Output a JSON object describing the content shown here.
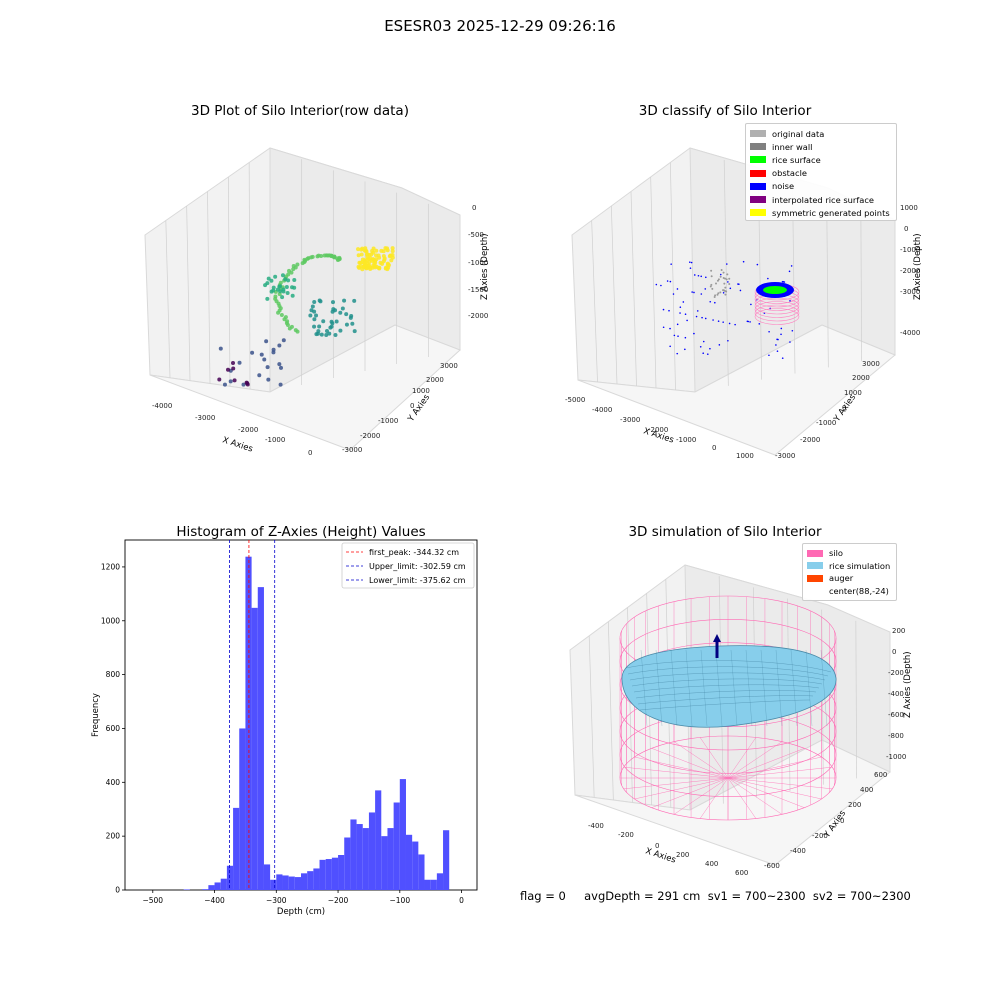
{
  "suptitle": "ESESR03 2025-12-29 09:26:16",
  "panels": {
    "raw": {
      "title": "3D Plot of Silo Interior(row data)",
      "xlabel": "X Axies",
      "ylabel": "Y Axies",
      "zlabel": "Z Axies (Depth)",
      "xticks": [
        "-4000",
        "-3000",
        "-2000",
        "-1000",
        "0"
      ],
      "yticks": [
        "-3000",
        "-2000",
        "-1000",
        "0",
        "1000",
        "2000",
        "3000"
      ],
      "zticks": [
        "-2000",
        "-1500",
        "-1000",
        "-500",
        "0"
      ]
    },
    "classify": {
      "title": "3D classify of Silo Interior",
      "xlabel": "X Axies",
      "ylabel": "Y Axies",
      "zlabel": "Z Axies (Depth)",
      "xticks": [
        "-5000",
        "-4000",
        "-3000",
        "-2000",
        "-1000",
        "0",
        "1000"
      ],
      "yticks": [
        "-3000",
        "-2000",
        "-1000",
        "0",
        "1000",
        "2000",
        "3000"
      ],
      "zticks": [
        "-4000",
        "-3000",
        "-2000",
        "-1000",
        "0",
        "1000",
        "2000"
      ],
      "legend": [
        {
          "label": "original data",
          "color": "#b0b0b0"
        },
        {
          "label": "inner wall",
          "color": "#808080"
        },
        {
          "label": "rice surface",
          "color": "#00ff00"
        },
        {
          "label": "obstacle",
          "color": "#ff0000"
        },
        {
          "label": "noise",
          "color": "#0000ff"
        },
        {
          "label": "interpolated rice surface",
          "color": "#800080"
        },
        {
          "label": "symmetric generated points",
          "color": "#ffff00"
        }
      ]
    },
    "simulation": {
      "title": "3D simulation of Silo Interior",
      "xlabel": "X Axies",
      "ylabel": "Y Axies",
      "zlabel": "Z Axies (Depth)",
      "xticks": [
        "-400",
        "-200",
        "0",
        "200",
        "400",
        "600"
      ],
      "yticks": [
        "-600",
        "-400",
        "-200",
        "0",
        "200",
        "400",
        "600"
      ],
      "zticks": [
        "-1000",
        "-800",
        "-600",
        "-400",
        "-200",
        "0",
        "200"
      ],
      "legend": [
        {
          "label": "silo",
          "color": "#ff69b4"
        },
        {
          "label": "rice simulation",
          "color": "#87ceeb"
        },
        {
          "label": "auger",
          "color": "#ff4500"
        },
        {
          "label": "center(88,-24)",
          "color": ""
        }
      ]
    }
  },
  "status": {
    "text": "flag = 0     avgDepth = 291 cm  sv1 = 700~2300  sv2 = 700~2300"
  },
  "chart_data": {
    "type": "bar",
    "title": "Histogram of Z-Axies (Height) Values",
    "xlabel": "Depth (cm)",
    "ylabel": "Frequency",
    "xlim": [
      -545,
      25
    ],
    "ylim": [
      0,
      1300
    ],
    "xticks": [
      -500,
      -400,
      -300,
      -200,
      -100,
      0
    ],
    "yticks": [
      0,
      200,
      400,
      600,
      800,
      1000,
      1200
    ],
    "bar_color": "#5050ff",
    "bins": [
      {
        "x0": -450,
        "x1": -440,
        "v": 2
      },
      {
        "x0": -420,
        "x1": -410,
        "v": 3
      },
      {
        "x0": -410,
        "x1": -400,
        "v": 18
      },
      {
        "x0": -400,
        "x1": -390,
        "v": 28
      },
      {
        "x0": -390,
        "x1": -380,
        "v": 42
      },
      {
        "x0": -380,
        "x1": -370,
        "v": 90
      },
      {
        "x0": -370,
        "x1": -360,
        "v": 305
      },
      {
        "x0": -360,
        "x1": -350,
        "v": 600
      },
      {
        "x0": -350,
        "x1": -340,
        "v": 1238
      },
      {
        "x0": -340,
        "x1": -330,
        "v": 1048
      },
      {
        "x0": -330,
        "x1": -320,
        "v": 1125
      },
      {
        "x0": -320,
        "x1": -310,
        "v": 95
      },
      {
        "x0": -310,
        "x1": -300,
        "v": 38
      },
      {
        "x0": -300,
        "x1": -290,
        "v": 58
      },
      {
        "x0": -290,
        "x1": -280,
        "v": 54
      },
      {
        "x0": -280,
        "x1": -270,
        "v": 50
      },
      {
        "x0": -270,
        "x1": -260,
        "v": 48
      },
      {
        "x0": -260,
        "x1": -250,
        "v": 62
      },
      {
        "x0": -250,
        "x1": -240,
        "v": 70
      },
      {
        "x0": -240,
        "x1": -230,
        "v": 80
      },
      {
        "x0": -230,
        "x1": -220,
        "v": 112
      },
      {
        "x0": -220,
        "x1": -210,
        "v": 115
      },
      {
        "x0": -210,
        "x1": -200,
        "v": 120
      },
      {
        "x0": -200,
        "x1": -190,
        "v": 130
      },
      {
        "x0": -190,
        "x1": -180,
        "v": 195
      },
      {
        "x0": -180,
        "x1": -170,
        "v": 262
      },
      {
        "x0": -170,
        "x1": -160,
        "v": 245
      },
      {
        "x0": -160,
        "x1": -150,
        "v": 230
      },
      {
        "x0": -150,
        "x1": -140,
        "v": 288
      },
      {
        "x0": -140,
        "x1": -130,
        "v": 370
      },
      {
        "x0": -130,
        "x1": -120,
        "v": 200
      },
      {
        "x0": -120,
        "x1": -110,
        "v": 230
      },
      {
        "x0": -110,
        "x1": -100,
        "v": 325
      },
      {
        "x0": -100,
        "x1": -90,
        "v": 412
      },
      {
        "x0": -90,
        "x1": -80,
        "v": 205
      },
      {
        "x0": -80,
        "x1": -70,
        "v": 180
      },
      {
        "x0": -70,
        "x1": -60,
        "v": 132
      },
      {
        "x0": -60,
        "x1": -50,
        "v": 38
      },
      {
        "x0": -50,
        "x1": -40,
        "v": 38
      },
      {
        "x0": -40,
        "x1": -30,
        "v": 62
      },
      {
        "x0": -30,
        "x1": -20,
        "v": 222
      }
    ],
    "vlines": [
      {
        "x": -344.32,
        "color": "#ff0000",
        "label": "first_peak: -344.32 cm"
      },
      {
        "x": -302.59,
        "color": "#0000cc",
        "label": "Upper_limit: -302.59 cm"
      },
      {
        "x": -375.62,
        "color": "#0000cc",
        "label": "Lower_limit: -375.62 cm"
      }
    ]
  }
}
